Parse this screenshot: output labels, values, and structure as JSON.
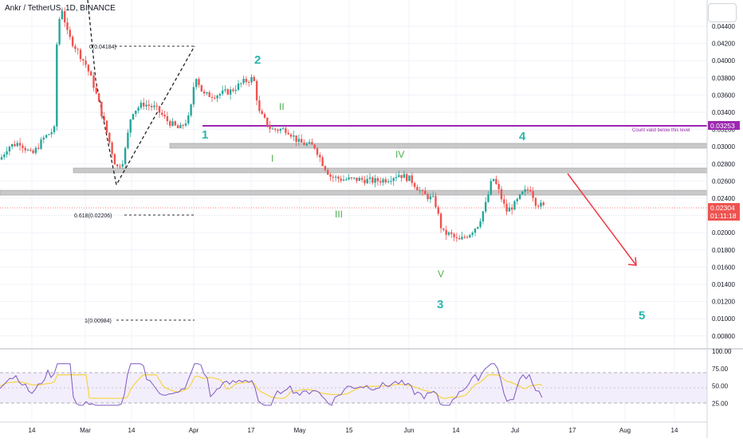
{
  "header": {
    "symbol_line": "Ankr / TetherUS, 1D, BINANCE"
  },
  "colors": {
    "up": "#26a69a",
    "down": "#ef5350",
    "wave": "#2bb5ac",
    "subwave": "#4caf50",
    "purple": "#9c27b0",
    "arrow": "#f23645",
    "rsi": "#7e57c2",
    "ma": "#f5d547",
    "band": "#f3eefb",
    "zone": "#bcbcbc"
  },
  "price_axis": {
    "ticks": [
      "0.04400",
      "0.04200",
      "0.04000",
      "0.03800",
      "0.03600",
      "0.03400",
      "0.03200",
      "0.03000",
      "0.02800",
      "0.02600",
      "0.02400",
      "0.02200",
      "0.02000",
      "0.01800",
      "0.01600",
      "0.01400",
      "0.01200",
      "0.01000",
      "0.00800"
    ],
    "current_price": "0.02304",
    "countdown": "01:11:18",
    "level_price": "0.03253"
  },
  "rsi_axis": {
    "ticks": [
      "100.00",
      "75.00",
      "50.00",
      "25.00"
    ]
  },
  "time_axis": {
    "ticks": [
      "14",
      "Mar",
      "14",
      "Apr",
      "17",
      "May",
      "15",
      "Jun",
      "14",
      "Jul",
      "17",
      "Aug",
      "14"
    ]
  },
  "fib": {
    "top": "0(0.04184)",
    "mid": "0.618(0.02206)",
    "bottom": "1(0.00984)"
  },
  "waves": {
    "w1": "1",
    "w2": "2",
    "w3": "3",
    "w4": "4",
    "w5": "5"
  },
  "subwaves": {
    "s1": "I",
    "s2": "II",
    "s3": "III",
    "s4": "IV",
    "s5": "V"
  },
  "annotation": {
    "count_note": "Count valid below this level"
  },
  "chart_data": {
    "type": "candlestick",
    "symbol": "Ankr / TetherUS",
    "interval": "1D",
    "exchange": "BINANCE",
    "approx_path": [
      {
        "x": "Feb 10",
        "y": 0.028
      },
      {
        "x": "Feb 20",
        "y": 0.03
      },
      {
        "x": "Feb 24",
        "y": 0.045
      },
      {
        "x": "Feb 28",
        "y": 0.042
      },
      {
        "x": "Mar 4",
        "y": 0.038
      },
      {
        "x": "Mar 10",
        "y": 0.027
      },
      {
        "x": "Mar 15",
        "y": 0.032
      },
      {
        "x": "Mar 25",
        "y": 0.034
      },
      {
        "x": "Apr 1",
        "y": 0.039
      },
      {
        "x": "Apr 10",
        "y": 0.0355
      },
      {
        "x": "Apr 17",
        "y": 0.0382
      },
      {
        "x": "Apr 25",
        "y": 0.0315
      },
      {
        "x": "May 1",
        "y": 0.0305
      },
      {
        "x": "May 8",
        "y": 0.0265
      },
      {
        "x": "May 20",
        "y": 0.0258
      },
      {
        "x": "May 28",
        "y": 0.0265
      },
      {
        "x": "Jun 5",
        "y": 0.0235
      },
      {
        "x": "Jun 9",
        "y": 0.0175
      },
      {
        "x": "Jun 15",
        "y": 0.0195
      },
      {
        "x": "Jun 25",
        "y": 0.027
      },
      {
        "x": "Jul 1",
        "y": 0.0225
      },
      {
        "x": "Jul 6",
        "y": 0.0255
      },
      {
        "x": "Jul 10",
        "y": 0.023
      }
    ],
    "horizontal_levels": [
      0.03253,
      0.03,
      0.0275,
      0.025
    ],
    "rsi": {
      "range": [
        0,
        100
      ],
      "bands": [
        30,
        70
      ],
      "last": 50
    }
  }
}
